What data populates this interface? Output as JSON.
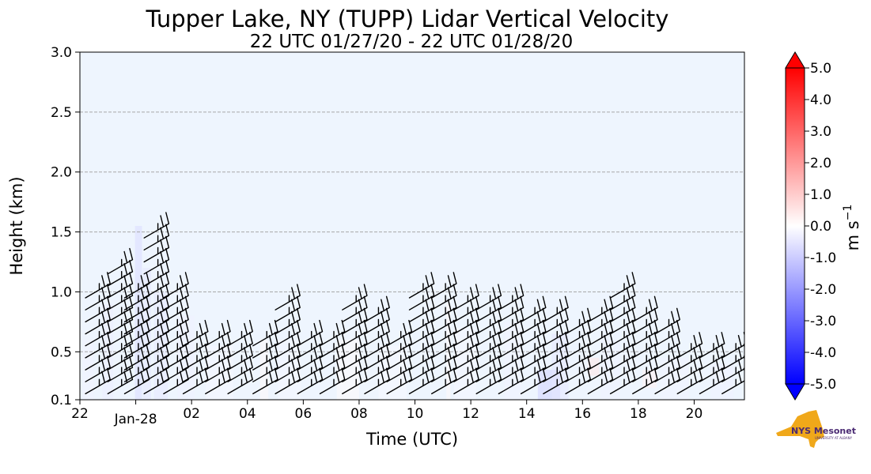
{
  "chart_data": {
    "type": "heatmap",
    "title": "Tupper Lake, NY (TUPP) Lidar Vertical Velocity",
    "subtitle": "22 UTC 01/27/20 - 22 UTC 01/28/20",
    "xlabel": "Time (UTC)",
    "ylabel": "Height (km)",
    "xlim": [
      22,
      45.8
    ],
    "ylim": [
      0.1,
      3.0
    ],
    "x_ticks": [
      {
        "value": 22,
        "label": "22"
      },
      {
        "value": 24,
        "label": "Jan-28"
      },
      {
        "value": 26,
        "label": "02"
      },
      {
        "value": 28,
        "label": "04"
      },
      {
        "value": 30,
        "label": "06"
      },
      {
        "value": 32,
        "label": "08"
      },
      {
        "value": 34,
        "label": "10"
      },
      {
        "value": 36,
        "label": "12"
      },
      {
        "value": 38,
        "label": "14"
      },
      {
        "value": 40,
        "label": "16"
      },
      {
        "value": 42,
        "label": "18"
      },
      {
        "value": 44,
        "label": "20"
      }
    ],
    "y_ticks": [
      {
        "value": 0.1,
        "label": "0.1"
      },
      {
        "value": 0.5,
        "label": "0.5"
      },
      {
        "value": 1.0,
        "label": "1.0"
      },
      {
        "value": 1.5,
        "label": "1.5"
      },
      {
        "value": 2.0,
        "label": "2.0"
      },
      {
        "value": 2.5,
        "label": "2.5"
      },
      {
        "value": 3.0,
        "label": "3.0"
      }
    ],
    "grid": "horizontal dashed",
    "background_color": "#eef5fe",
    "colorbar": {
      "label": "m s",
      "label_superscript": "−1",
      "min": -5.0,
      "max": 5.0,
      "ticks": [
        "5.0",
        "4.0",
        "3.0",
        "2.0",
        "1.0",
        "0.0",
        "-1.0",
        "-2.0",
        "-3.0",
        "-4.0",
        "-5.0"
      ],
      "tick_values": [
        5,
        4,
        3,
        2,
        1,
        0,
        -1,
        -2,
        -3,
        -4,
        -5
      ],
      "low_color": "#0000ff",
      "mid_color": "#ffffff",
      "high_color": "#ff0000",
      "extend": "both"
    },
    "velocity_cells": [
      {
        "t": 24.1,
        "h0": 0.1,
        "h1": 1.55,
        "dt": 0.25,
        "w": -0.7
      },
      {
        "t": 24.4,
        "h0": 0.1,
        "h1": 1.2,
        "dt": 0.3,
        "w": -0.5
      },
      {
        "t": 23.0,
        "h0": 0.1,
        "h1": 0.9,
        "dt": 0.4,
        "w": -0.35
      },
      {
        "t": 24.9,
        "h0": 0.1,
        "h1": 1.0,
        "dt": 0.5,
        "w": -0.45
      },
      {
        "t": 25.8,
        "h0": 0.1,
        "h1": 0.8,
        "dt": 0.6,
        "w": -0.3
      },
      {
        "t": 22.3,
        "h0": 0.1,
        "h1": 0.6,
        "dt": 0.4,
        "w": -0.25
      },
      {
        "t": 27.0,
        "h0": 0.1,
        "h1": 0.55,
        "dt": 1.0,
        "w": -0.2
      },
      {
        "t": 28.6,
        "h0": 0.1,
        "h1": 0.6,
        "dt": 0.3,
        "w": 0.15
      },
      {
        "t": 29.5,
        "h0": 0.1,
        "h1": 0.6,
        "dt": 0.8,
        "w": -0.2
      },
      {
        "t": 31.6,
        "h0": 0.1,
        "h1": 0.6,
        "dt": 0.8,
        "w": 0.12
      },
      {
        "t": 33.2,
        "h0": 0.1,
        "h1": 0.55,
        "dt": 1.0,
        "w": -0.15
      },
      {
        "t": 35.2,
        "h0": 0.1,
        "h1": 0.9,
        "dt": 0.15,
        "w": 0.15
      },
      {
        "t": 35.8,
        "h0": 0.1,
        "h1": 0.7,
        "dt": 0.8,
        "w": -0.2
      },
      {
        "t": 37.5,
        "h0": 0.1,
        "h1": 0.75,
        "dt": 0.6,
        "w": -0.25
      },
      {
        "t": 38.8,
        "h0": 0.1,
        "h1": 0.35,
        "dt": 0.8,
        "w": -0.9
      },
      {
        "t": 39.2,
        "h0": 0.1,
        "h1": 0.65,
        "dt": 0.6,
        "w": -0.5
      },
      {
        "t": 40.4,
        "h0": 0.3,
        "h1": 0.45,
        "dt": 0.4,
        "w": 0.5
      },
      {
        "t": 41.0,
        "h0": 0.1,
        "h1": 0.6,
        "dt": 0.7,
        "w": -0.3
      },
      {
        "t": 42.4,
        "h0": 0.2,
        "h1": 0.35,
        "dt": 0.5,
        "w": 0.3
      },
      {
        "t": 43.3,
        "h0": 0.1,
        "h1": 0.45,
        "dt": 1.0,
        "w": -0.25
      },
      {
        "t": 45.0,
        "h0": 0.1,
        "h1": 0.4,
        "dt": 0.8,
        "w": -0.3
      }
    ],
    "wind_barbs": {
      "times": [
        22.2,
        23.0,
        23.6,
        24.3,
        25.0,
        25.7,
        26.5,
        27.3,
        28.2,
        29.0,
        29.8,
        30.6,
        31.4,
        32.2,
        33.0,
        33.8,
        34.6,
        35.4,
        36.2,
        37.0,
        37.8,
        38.6,
        39.4,
        40.2,
        41.0,
        41.8,
        42.6,
        43.4,
        44.2,
        45.0
      ],
      "tops_km": [
        1.0,
        1.2,
        1.0,
        1.5,
        1.0,
        0.55,
        0.55,
        0.6,
        0.55,
        0.85,
        0.6,
        0.6,
        0.85,
        0.8,
        0.6,
        1.0,
        1.0,
        0.9,
        0.9,
        0.85,
        0.8,
        0.75,
        0.7,
        0.75,
        1.0,
        0.8,
        0.7,
        0.45,
        0.5,
        0.5
      ],
      "spacing_km": 0.1,
      "direction_from_deg": 300,
      "speed_kt": 25
    }
  },
  "logo": {
    "text": "NYS Mesonet",
    "subtext": "UNIVERSITY AT ALBANY",
    "state_color": "#f0a81a",
    "text_color": "#4a2a73"
  }
}
